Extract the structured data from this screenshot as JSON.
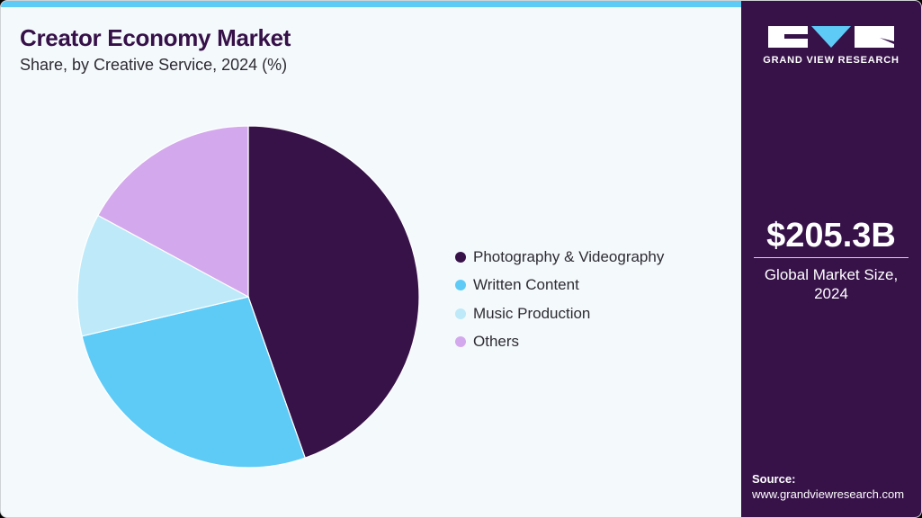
{
  "header": {
    "title": "Creator Economy Market",
    "subtitle": "Share, by Creative Service, 2024 (%)"
  },
  "sidebar": {
    "logo_text": "GRAND VIEW RESEARCH",
    "market_size": "$205.3B",
    "market_size_label_line1": "Global Market Size,",
    "market_size_label_line2": "2024",
    "source_label": "Source:",
    "source_url": "www.grandviewresearch.com"
  },
  "legend": [
    {
      "label": "Photography & Videography",
      "color": "#371249"
    },
    {
      "label": "Written Content",
      "color": "#5ecbf7"
    },
    {
      "label": "Music Production",
      "color": "#bde9f9"
    },
    {
      "label": "Others",
      "color": "#d4a8ec"
    }
  ],
  "chart_data": {
    "type": "pie",
    "title": "Creator Economy Market",
    "subtitle": "Share, by Creative Service, 2024 (%)",
    "categories": [
      "Photography & Videography",
      "Written Content",
      "Music Production",
      "Others"
    ],
    "values": [
      44.6,
      26.7,
      11.6,
      17.1
    ],
    "colors": [
      "#371249",
      "#5ecbf7",
      "#bde9f9",
      "#d4a8ec"
    ],
    "start_angle_deg": 0,
    "direction": "clockwise",
    "legend_position": "right"
  }
}
